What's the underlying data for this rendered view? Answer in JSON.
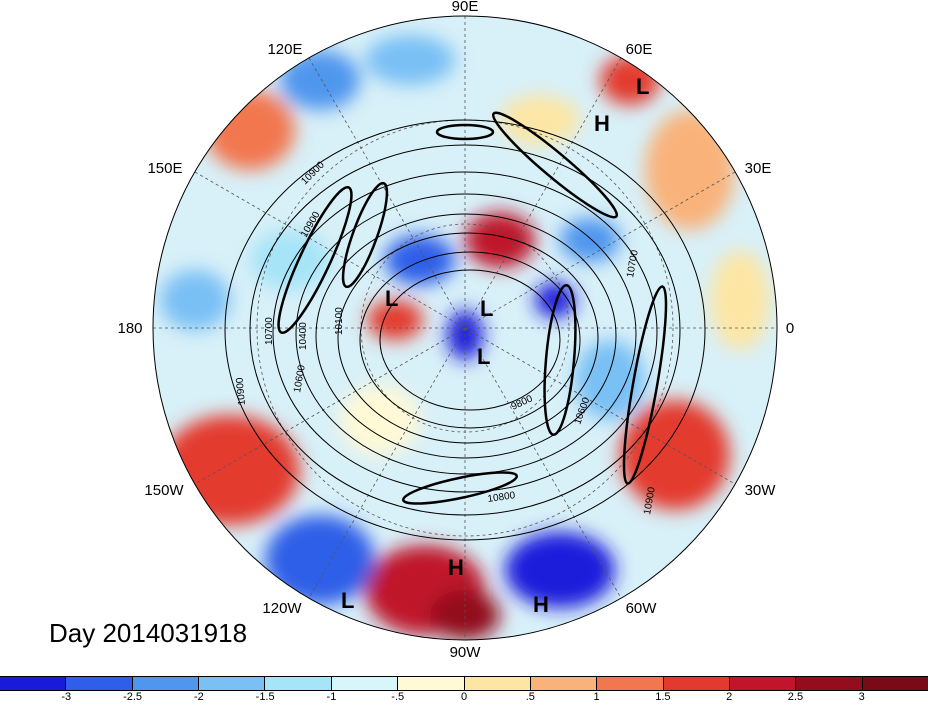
{
  "title": "Day 2014031918",
  "longitude_labels": [
    "90E",
    "60E",
    "30E",
    "0",
    "30W",
    "60W",
    "90W",
    "120W",
    "150W",
    "180",
    "150E",
    "120E"
  ],
  "pressure_systems": [
    {
      "type": "H",
      "label": "H"
    },
    {
      "type": "L",
      "label": "L"
    },
    {
      "type": "L",
      "label": "L"
    },
    {
      "type": "L",
      "label": "L"
    },
    {
      "type": "L",
      "label": "L"
    },
    {
      "type": "H",
      "label": "H"
    },
    {
      "type": "H",
      "label": "H"
    },
    {
      "type": "L",
      "label": "L"
    }
  ],
  "contour_labels": [
    "10900",
    "10900",
    "10700",
    "10400",
    "10100",
    "10600",
    "10900",
    "9800",
    "10600",
    "10800",
    "10900",
    "10700"
  ],
  "colorbar": {
    "colors": [
      "#1a1adb",
      "#2f5fe8",
      "#4f96ee",
      "#79c0f5",
      "#a6e4f8",
      "#d6f6fb",
      "#fff9d6",
      "#fde6a4",
      "#f9b27a",
      "#f2774f",
      "#e33a2f",
      "#c0152a",
      "#930d1f"
    ],
    "labels": [
      "-3",
      "-2.5",
      "-2",
      "-1.5",
      "-1",
      "-.5",
      "0",
      ".5",
      "1",
      "1.5",
      "2",
      "2.5",
      "3"
    ]
  }
}
